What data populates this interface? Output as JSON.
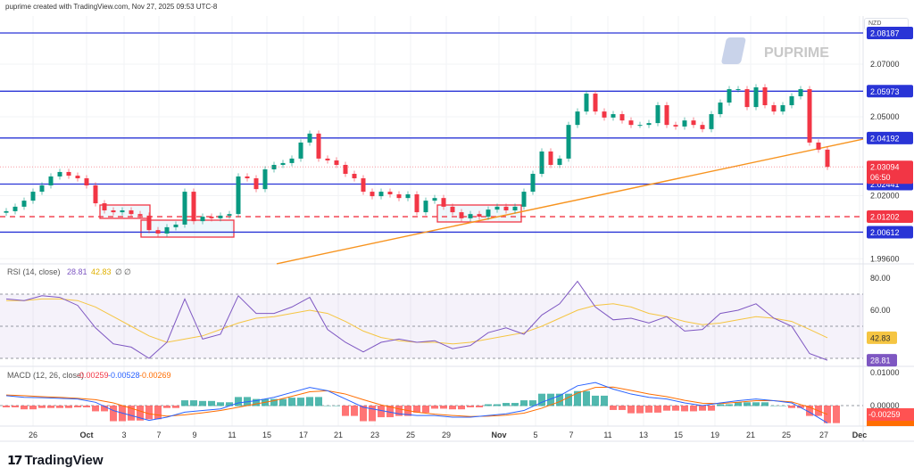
{
  "header": {
    "attribution": "puprime created with TradingView.com, Nov 27, 2025 09:53 UTC-8"
  },
  "currency": "NZD",
  "watermark": "PUPRIME",
  "footer": {
    "logo": "TradingView"
  },
  "colors": {
    "up": "#089981",
    "down": "#f23645",
    "level": "#2934d6",
    "trend": "#f7931e",
    "rsi": "#7e57c2",
    "rsi_ma": "#f5c542",
    "macd": "#2962ff",
    "signal": "#ff6d00"
  },
  "chart_data": [
    {
      "type": "candlestick",
      "pane": "price",
      "currency": "NZD",
      "ylim": [
        1.994,
        2.088
      ],
      "y_ticks": [
        "2.07000",
        "2.05000",
        "2.02000",
        "1.99600"
      ],
      "x_ticks": [
        "26",
        "Oct",
        "3",
        "7",
        "9",
        "11",
        "15",
        "17",
        "21",
        "23",
        "25",
        "29",
        "Nov",
        "5",
        "7",
        "11",
        "13",
        "15",
        "19",
        "21",
        "25",
        "27",
        "Dec"
      ],
      "first_open": 2.0135,
      "closes": [
        2.0141,
        2.0158,
        2.0181,
        2.0215,
        2.0239,
        2.0273,
        2.029,
        2.0276,
        2.0266,
        2.0239,
        2.0171,
        2.0144,
        2.0137,
        2.0144,
        2.013,
        2.0124,
        2.0069,
        2.0056,
        2.008,
        2.009,
        2.0215,
        2.0103,
        2.012,
        2.0114,
        2.0124,
        2.013,
        2.0273,
        2.0266,
        2.0225,
        2.03,
        2.0317,
        2.0324,
        2.0341,
        2.0402,
        2.0436,
        2.0341,
        2.0334,
        2.0317,
        2.0283,
        2.0266,
        2.0215,
        2.0198,
        2.0215,
        2.0205,
        2.0191,
        2.0205,
        2.0137,
        2.0181,
        2.0191,
        2.0158,
        2.0137,
        2.0114,
        2.013,
        2.012,
        2.0147,
        2.0158,
        2.0144,
        2.0158,
        2.0215,
        2.0283,
        2.0368,
        2.0317,
        2.0341,
        2.0469,
        2.052,
        2.0588,
        2.052,
        2.0497,
        2.051,
        2.0486,
        2.0469,
        2.0469,
        2.0476,
        2.0544,
        2.0469,
        2.0463,
        2.0486,
        2.0469,
        2.0453,
        2.051,
        2.0554,
        2.0605,
        2.0605,
        2.0537,
        2.0612,
        2.0544,
        2.052,
        2.0544,
        2.0578,
        2.0605,
        2.0402,
        2.0375,
        2.03094
      ],
      "levels": [
        {
          "price": 2.08187,
          "label": "2.08187",
          "style": "solid",
          "color": "#2934d6"
        },
        {
          "price": 2.05973,
          "label": "2.05973",
          "style": "solid",
          "color": "#2934d6"
        },
        {
          "price": 2.04192,
          "label": "2.04192",
          "style": "solid",
          "color": "#2934d6"
        },
        {
          "price": 2.02441,
          "label": "2.02441",
          "style": "solid",
          "color": "#2934d6"
        },
        {
          "price": 2.01202,
          "label": "2.01202",
          "style": "dashed",
          "color": "#f23645"
        },
        {
          "price": 2.00612,
          "label": "2.00612",
          "style": "solid",
          "color": "#2934d6"
        }
      ],
      "trendline": {
        "start_price": 1.9941,
        "end_price": 2.0415
      },
      "last_price": {
        "label": "2.03094",
        "countdown": "06:50"
      }
    },
    {
      "type": "line",
      "pane": "rsi",
      "title": "RSI (14, close)",
      "legend_values": [
        "28.81",
        "42.83",
        "∅",
        "∅"
      ],
      "y_ticks": [
        "80.00",
        "60.00"
      ],
      "bands": [
        70,
        50,
        30
      ],
      "ylim": [
        20,
        85
      ],
      "series": [
        {
          "name": "RSI",
          "values": [
            67,
            66,
            69,
            68,
            63,
            49,
            39,
            37,
            30,
            40,
            67,
            42,
            45,
            69,
            58,
            58,
            62,
            68,
            48,
            40,
            34,
            40,
            42,
            40,
            41,
            36,
            38,
            46,
            49,
            45,
            57,
            64,
            78,
            62,
            54,
            55,
            52,
            56,
            47,
            48,
            58,
            60,
            64,
            55,
            50,
            33,
            28.81
          ],
          "label": "28.81"
        },
        {
          "name": "RSI MA",
          "values": [
            66,
            66,
            67,
            67,
            66,
            62,
            56,
            50,
            44,
            40,
            42,
            44,
            48,
            52,
            55,
            56,
            58,
            60,
            58,
            53,
            47,
            43,
            41,
            40,
            40,
            39,
            40,
            42,
            44,
            46,
            50,
            55,
            60,
            63,
            64,
            62,
            58,
            56,
            53,
            51,
            52,
            54,
            56,
            55,
            53,
            48,
            42.83
          ],
          "label": "42.83"
        }
      ]
    },
    {
      "type": "line+bar",
      "pane": "macd",
      "title": "MACD (12, 26, close)",
      "legend_values": [
        "-0.00259",
        "-0.00528",
        "-0.00269"
      ],
      "y_ticks": [
        "0.01000",
        "0.00000"
      ],
      "series": [
        {
          "name": "MACD",
          "values": [
            0.003,
            0.0025,
            0.0024,
            0.0022,
            0.002,
            0.001,
            -0.0015,
            -0.003,
            -0.0045,
            -0.0035,
            -0.002,
            -0.0015,
            -0.001,
            0.0008,
            0.0015,
            0.0025,
            0.004,
            0.0055,
            0.0045,
            0.002,
            -0.0005,
            -0.0015,
            -0.0025,
            -0.003,
            -0.003,
            -0.0035,
            -0.0035,
            -0.003,
            -0.0025,
            -0.0015,
            0.001,
            0.003,
            0.006,
            0.007,
            0.005,
            0.0035,
            0.0025,
            0.002,
            0.0008,
            0.0,
            0.0008,
            0.0015,
            0.002,
            0.0015,
            0.0008,
            -0.002,
            -0.00528
          ]
        },
        {
          "name": "Signal",
          "values": [
            0.0032,
            0.003,
            0.0027,
            0.0025,
            0.0022,
            0.0018,
            0.0008,
            -0.0008,
            -0.0025,
            -0.0032,
            -0.0028,
            -0.0022,
            -0.0015,
            -0.0005,
            0.0005,
            0.0015,
            0.0028,
            0.0042,
            0.0045,
            0.0035,
            0.0018,
            0.0002,
            -0.001,
            -0.002,
            -0.0026,
            -0.003,
            -0.0033,
            -0.0032,
            -0.0029,
            -0.0023,
            -0.0008,
            0.0012,
            0.0038,
            0.0055,
            0.0056,
            0.0046,
            0.0035,
            0.0027,
            0.0016,
            0.0007,
            0.0006,
            0.001,
            0.0015,
            0.0015,
            0.0011,
            -0.0005,
            -0.00269
          ]
        }
      ],
      "labels": {
        "histogram": "-0.00259",
        "signal": "-0.00269"
      }
    }
  ]
}
